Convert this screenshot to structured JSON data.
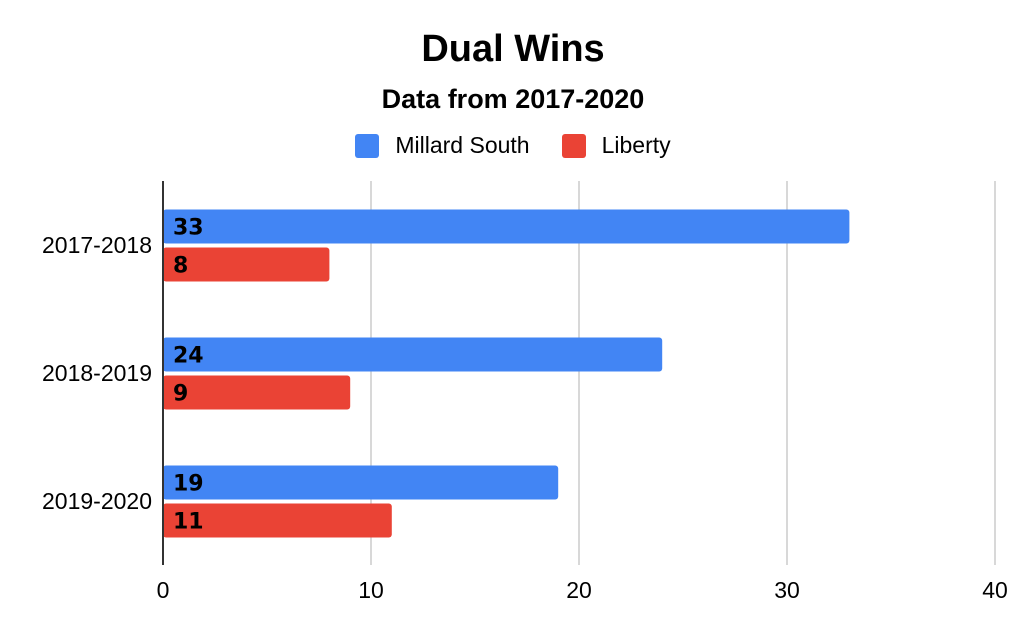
{
  "chart_data": {
    "type": "bar",
    "orientation": "horizontal",
    "title": "Dual Wins",
    "subtitle": "Data from 2017-2020",
    "categories": [
      "2017-2018",
      "2018-2019",
      "2019-2020"
    ],
    "series": [
      {
        "name": "Millard South",
        "color": "#4285f4",
        "values": [
          33,
          24,
          19
        ]
      },
      {
        "name": "Liberty",
        "color": "#ea4335",
        "values": [
          8,
          9,
          11
        ]
      }
    ],
    "xlim": [
      0,
      40
    ],
    "xticks": [
      "0",
      "10",
      "20",
      "30",
      "40"
    ],
    "grid": true,
    "legend_position": "top",
    "data_labels": true
  }
}
